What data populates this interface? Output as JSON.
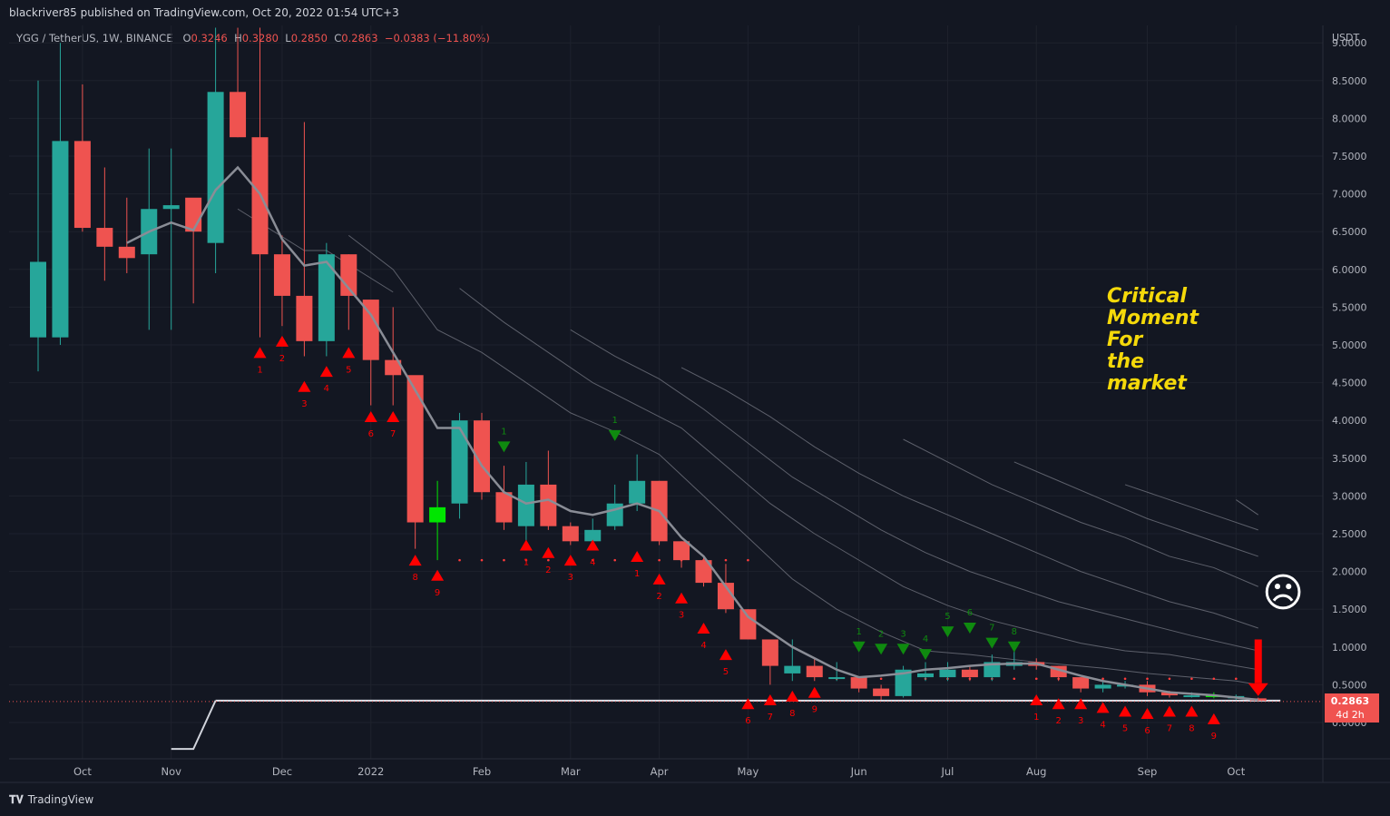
{
  "header": {
    "published_text": "blackriver85 published on TradingView.com, Oct 20, 2022 01:54 UTC+3"
  },
  "legend": {
    "symbol": "YGG / TetherUS, 1W, BINANCE",
    "o_label": "O",
    "o_value": "0.3246",
    "h_label": "H",
    "h_value": "0.3280",
    "l_label": "L",
    "l_value": "0.2850",
    "c_label": "C",
    "c_value": "0.2863",
    "change": "−0.0383 (−11.80%)"
  },
  "price_tag": {
    "price": "0.2863",
    "time_left": "4d 2h"
  },
  "annotation": {
    "lines": [
      "Critical",
      "Moment",
      "For",
      "the",
      "market"
    ]
  },
  "sad_face": "☹",
  "footer": {
    "brand": "TradingView"
  },
  "colors": {
    "up": "#26a69a",
    "down": "#ef5350",
    "bg": "#131722",
    "bright_green": "#00e600",
    "signal_red": "#ff0000",
    "signal_green": "#0f8a0f",
    "annotation": "#f5d90a"
  },
  "chart_data": {
    "type": "candlestick",
    "title": "YGG / TetherUS, 1W, BINANCE",
    "y_axis_title": "USDT",
    "y_ticks": [
      "0.0000",
      "0.5000",
      "1.0000",
      "1.5000",
      "2.0000",
      "2.5000",
      "3.0000",
      "3.5000",
      "4.0000",
      "4.5000",
      "5.0000",
      "5.5000",
      "6.0000",
      "6.5000",
      "7.0000",
      "7.5000",
      "8.0000",
      "8.5000",
      "9.0000"
    ],
    "ylim": [
      -0.45,
      9.2
    ],
    "x_ticks": [
      {
        "label": "Oct",
        "week": 2
      },
      {
        "label": "Nov",
        "week": 6
      },
      {
        "label": "Dec",
        "week": 11
      },
      {
        "label": "2022",
        "week": 15
      },
      {
        "label": "Feb",
        "week": 20
      },
      {
        "label": "Mar",
        "week": 24
      },
      {
        "label": "Apr",
        "week": 28
      },
      {
        "label": "May",
        "week": 32
      },
      {
        "label": "Jun",
        "week": 37
      },
      {
        "label": "Jul",
        "week": 41
      },
      {
        "label": "Aug",
        "week": 45
      },
      {
        "label": "Sep",
        "week": 50
      },
      {
        "label": "Oct",
        "week": 54
      }
    ],
    "candles": [
      [
        5.1,
        6.1,
        8.5,
        4.65
      ],
      [
        5.1,
        7.7,
        9.0,
        5.0
      ],
      [
        7.7,
        6.55,
        8.45,
        6.5
      ],
      [
        6.55,
        6.3,
        7.35,
        5.85
      ],
      [
        6.3,
        6.15,
        6.95,
        5.95
      ],
      [
        6.2,
        6.8,
        7.6,
        5.2
      ],
      [
        6.8,
        6.85,
        7.6,
        5.2
      ],
      [
        6.95,
        6.5,
        6.9,
        5.55
      ],
      [
        6.35,
        8.35,
        9.2,
        5.95
      ],
      [
        8.35,
        7.75,
        9.2,
        7.75
      ],
      [
        7.75,
        6.2,
        9.2,
        5.1
      ],
      [
        6.2,
        5.65,
        6.45,
        5.25
      ],
      [
        5.65,
        5.05,
        7.95,
        4.85
      ],
      [
        5.05,
        6.2,
        6.35,
        4.85
      ],
      [
        6.2,
        5.65,
        6.2,
        5.2
      ],
      [
        5.6,
        4.8,
        5.55,
        4.2
      ],
      [
        4.8,
        4.6,
        5.5,
        4.2
      ],
      [
        4.6,
        2.65,
        4.55,
        2.3
      ],
      [
        2.65,
        2.85,
        3.2,
        2.15
      ],
      [
        2.9,
        4.0,
        4.1,
        2.7
      ],
      [
        4.0,
        3.05,
        4.1,
        2.95
      ],
      [
        3.05,
        2.65,
        3.4,
        2.55
      ],
      [
        2.6,
        3.15,
        3.45,
        2.3
      ],
      [
        3.15,
        2.6,
        3.6,
        2.55
      ],
      [
        2.6,
        2.4,
        2.65,
        2.35
      ],
      [
        2.4,
        2.55,
        2.7,
        2.3
      ],
      [
        2.6,
        2.9,
        3.15,
        2.55
      ],
      [
        2.9,
        3.2,
        3.55,
        2.8
      ],
      [
        3.2,
        2.4,
        3.2,
        2.35
      ],
      [
        2.4,
        2.15,
        2.4,
        2.05
      ],
      [
        2.15,
        1.85,
        2.2,
        1.8
      ],
      [
        1.85,
        1.5,
        2.1,
        1.45
      ],
      [
        1.5,
        1.1,
        1.5,
        1.1
      ],
      [
        1.1,
        0.75,
        1.1,
        0.5
      ],
      [
        0.65,
        0.75,
        1.1,
        0.55
      ],
      [
        0.75,
        0.6,
        0.85,
        0.55
      ],
      [
        0.6,
        0.6,
        0.8,
        0.55
      ],
      [
        0.6,
        0.45,
        0.6,
        0.4
      ],
      [
        0.45,
        0.35,
        0.5,
        0.3
      ],
      [
        0.35,
        0.7,
        0.75,
        0.33
      ],
      [
        0.6,
        0.65,
        0.8,
        0.55
      ],
      [
        0.6,
        0.7,
        0.8,
        0.55
      ],
      [
        0.7,
        0.6,
        0.75,
        0.55
      ],
      [
        0.6,
        0.8,
        0.9,
        0.55
      ],
      [
        0.75,
        0.8,
        0.95,
        0.7
      ],
      [
        0.8,
        0.75,
        0.85,
        0.7
      ],
      [
        0.75,
        0.6,
        0.75,
        0.55
      ],
      [
        0.6,
        0.45,
        0.6,
        0.4
      ],
      [
        0.45,
        0.5,
        0.55,
        0.4
      ],
      [
        0.5,
        0.5,
        0.55,
        0.45
      ],
      [
        0.5,
        0.4,
        0.55,
        0.35
      ],
      [
        0.4,
        0.36,
        0.42,
        0.33
      ],
      [
        0.36,
        0.36,
        0.4,
        0.33
      ],
      [
        0.36,
        0.35,
        0.4,
        0.32
      ],
      [
        0.32,
        0.35,
        0.37,
        0.3
      ],
      [
        0.32,
        0.29,
        0.33,
        0.285
      ]
    ],
    "bright_green_weeks": [
      18,
      53
    ],
    "moving_average": [
      [
        4,
        6.35
      ],
      [
        5,
        6.5
      ],
      [
        6,
        6.62
      ],
      [
        7,
        6.52
      ],
      [
        8,
        7.05
      ],
      [
        9,
        7.35
      ],
      [
        10,
        7.0
      ],
      [
        11,
        6.4
      ],
      [
        12,
        6.05
      ],
      [
        13,
        6.1
      ],
      [
        14,
        5.75
      ],
      [
        15,
        5.4
      ],
      [
        16,
        4.9
      ],
      [
        17,
        4.4
      ],
      [
        18,
        3.9
      ],
      [
        19,
        3.9
      ],
      [
        20,
        3.4
      ],
      [
        21,
        3.05
      ],
      [
        22,
        2.9
      ],
      [
        23,
        2.95
      ],
      [
        24,
        2.8
      ],
      [
        25,
        2.75
      ],
      [
        26,
        2.82
      ],
      [
        27,
        2.9
      ],
      [
        28,
        2.8
      ],
      [
        29,
        2.45
      ],
      [
        30,
        2.2
      ],
      [
        31,
        1.8
      ],
      [
        32,
        1.4
      ],
      [
        33,
        1.2
      ],
      [
        34,
        1.0
      ],
      [
        35,
        0.85
      ],
      [
        36,
        0.7
      ],
      [
        37,
        0.6
      ],
      [
        38,
        0.62
      ],
      [
        39,
        0.65
      ],
      [
        40,
        0.7
      ],
      [
        41,
        0.72
      ],
      [
        42,
        0.75
      ],
      [
        43,
        0.77
      ],
      [
        44,
        0.78
      ],
      [
        45,
        0.78
      ],
      [
        46,
        0.7
      ],
      [
        47,
        0.62
      ],
      [
        48,
        0.55
      ],
      [
        49,
        0.5
      ],
      [
        50,
        0.45
      ],
      [
        51,
        0.4
      ],
      [
        52,
        0.38
      ],
      [
        53,
        0.36
      ],
      [
        54,
        0.33
      ],
      [
        55,
        0.3
      ]
    ],
    "support_line": {
      "value": 0.29,
      "from_week": 8,
      "to_week": 56,
      "rise_from": [
        [
          6,
          -0.35
        ],
        [
          7,
          -0.35
        ],
        [
          8,
          0.29
        ]
      ]
    },
    "envelope_lines": [
      [
        [
          9,
          6.8
        ],
        [
          12,
          6.25
        ],
        [
          13,
          6.25
        ],
        [
          16,
          5.7
        ]
      ],
      [
        [
          14,
          6.45
        ],
        [
          16,
          6.0
        ],
        [
          18,
          5.2
        ],
        [
          20,
          4.9
        ],
        [
          22,
          4.5
        ],
        [
          24,
          4.1
        ],
        [
          26,
          3.85
        ],
        [
          28,
          3.55
        ],
        [
          30,
          3.0
        ],
        [
          32,
          2.45
        ],
        [
          34,
          1.9
        ],
        [
          36,
          1.5
        ],
        [
          38,
          1.2
        ],
        [
          40,
          0.95
        ],
        [
          42,
          0.9
        ],
        [
          45,
          0.8
        ],
        [
          48,
          0.72
        ],
        [
          50,
          0.65
        ],
        [
          52,
          0.6
        ],
        [
          54,
          0.55
        ],
        [
          55,
          0.5
        ]
      ],
      [
        [
          19,
          5.75
        ],
        [
          21,
          5.3
        ],
        [
          23,
          4.9
        ],
        [
          25,
          4.5
        ],
        [
          27,
          4.2
        ],
        [
          29,
          3.9
        ],
        [
          31,
          3.4
        ],
        [
          33,
          2.9
        ],
        [
          35,
          2.5
        ],
        [
          37,
          2.15
        ],
        [
          39,
          1.8
        ],
        [
          41,
          1.55
        ],
        [
          43,
          1.35
        ],
        [
          45,
          1.2
        ],
        [
          47,
          1.05
        ],
        [
          49,
          0.95
        ],
        [
          51,
          0.9
        ],
        [
          53,
          0.8
        ],
        [
          55,
          0.7
        ]
      ],
      [
        [
          24,
          5.2
        ],
        [
          26,
          4.85
        ],
        [
          28,
          4.55
        ],
        [
          30,
          4.15
        ],
        [
          32,
          3.7
        ],
        [
          34,
          3.25
        ],
        [
          36,
          2.9
        ],
        [
          38,
          2.55
        ],
        [
          40,
          2.25
        ],
        [
          42,
          2.0
        ],
        [
          44,
          1.8
        ],
        [
          46,
          1.6
        ],
        [
          48,
          1.45
        ],
        [
          50,
          1.3
        ],
        [
          52,
          1.15
        ],
        [
          55,
          0.95
        ]
      ],
      [
        [
          29,
          4.7
        ],
        [
          31,
          4.4
        ],
        [
          33,
          4.05
        ],
        [
          35,
          3.65
        ],
        [
          37,
          3.3
        ],
        [
          39,
          3.0
        ],
        [
          41,
          2.75
        ],
        [
          43,
          2.5
        ],
        [
          45,
          2.25
        ],
        [
          47,
          2.0
        ],
        [
          49,
          1.8
        ],
        [
          51,
          1.6
        ],
        [
          53,
          1.45
        ],
        [
          55,
          1.25
        ]
      ],
      [
        [
          39,
          3.75
        ],
        [
          41,
          3.45
        ],
        [
          43,
          3.15
        ],
        [
          45,
          2.9
        ],
        [
          47,
          2.65
        ],
        [
          49,
          2.45
        ],
        [
          51,
          2.2
        ],
        [
          53,
          2.05
        ],
        [
          55,
          1.8
        ]
      ],
      [
        [
          44,
          3.45
        ],
        [
          46,
          3.2
        ],
        [
          48,
          2.95
        ],
        [
          50,
          2.7
        ],
        [
          52,
          2.5
        ],
        [
          54,
          2.3
        ],
        [
          55,
          2.2
        ]
      ],
      [
        [
          49,
          3.15
        ],
        [
          51,
          2.95
        ],
        [
          53,
          2.75
        ],
        [
          55,
          2.55
        ]
      ],
      [
        [
          54,
          2.95
        ],
        [
          55,
          2.75
        ]
      ]
    ],
    "red_signals": [
      {
        "week": 10,
        "value": 4.9,
        "label": "1"
      },
      {
        "week": 11,
        "value": 5.05,
        "label": "2"
      },
      {
        "week": 12,
        "value": 4.45,
        "label": "3"
      },
      {
        "week": 13,
        "value": 4.65,
        "label": "4"
      },
      {
        "week": 14,
        "value": 4.9,
        "label": "5"
      },
      {
        "week": 15,
        "value": 4.05,
        "label": "6"
      },
      {
        "week": 16,
        "value": 4.05,
        "label": "7"
      },
      {
        "week": 17,
        "value": 2.15,
        "label": "8"
      },
      {
        "week": 18,
        "value": 1.95,
        "label": "9"
      },
      {
        "week": 22,
        "value": 2.35,
        "label": "1"
      },
      {
        "week": 23,
        "value": 2.25,
        "label": "2"
      },
      {
        "week": 24,
        "value": 2.15,
        "label": "3"
      },
      {
        "week": 25,
        "value": 2.35,
        "label": "4"
      },
      {
        "week": 27,
        "value": 2.2,
        "label": "1"
      },
      {
        "week": 28,
        "value": 1.9,
        "label": "2"
      },
      {
        "week": 29,
        "value": 1.65,
        "label": "3"
      },
      {
        "week": 30,
        "value": 1.25,
        "label": "4"
      },
      {
        "week": 31,
        "value": 0.9,
        "label": "5"
      },
      {
        "week": 32,
        "value": 0.25,
        "label": "6"
      },
      {
        "week": 33,
        "value": 0.3,
        "label": "7"
      },
      {
        "week": 34,
        "value": 0.35,
        "label": "8"
      },
      {
        "week": 35,
        "value": 0.4,
        "label": "9"
      },
      {
        "week": 45,
        "value": 0.3,
        "label": "1"
      },
      {
        "week": 46,
        "value": 0.25,
        "label": "2"
      },
      {
        "week": 47,
        "value": 0.25,
        "label": "3"
      },
      {
        "week": 48,
        "value": 0.2,
        "label": "4"
      },
      {
        "week": 49,
        "value": 0.15,
        "label": "5"
      },
      {
        "week": 50,
        "value": 0.12,
        "label": "6"
      },
      {
        "week": 51,
        "value": 0.15,
        "label": "7"
      },
      {
        "week": 52,
        "value": 0.15,
        "label": "8"
      },
      {
        "week": 53,
        "value": 0.05,
        "label": "9"
      }
    ],
    "green_signals": [
      {
        "week": 21,
        "value": 3.65,
        "label": "1"
      },
      {
        "week": 26,
        "value": 3.8,
        "label": "1"
      },
      {
        "week": 37,
        "value": 1.0,
        "label": "1"
      },
      {
        "week": 38,
        "value": 0.97,
        "label": "2"
      },
      {
        "week": 39,
        "value": 0.97,
        "label": "3"
      },
      {
        "week": 40,
        "value": 0.9,
        "label": "4"
      },
      {
        "week": 41,
        "value": 1.2,
        "label": "5"
      },
      {
        "week": 42,
        "value": 1.25,
        "label": "6"
      },
      {
        "week": 43,
        "value": 1.05,
        "label": "7"
      },
      {
        "week": 44,
        "value": 1.0,
        "label": "8"
      }
    ],
    "dot_rows": [
      {
        "value": 2.15,
        "from_week": 19,
        "to_week": 32
      },
      {
        "value": 0.58,
        "from_week": 36,
        "to_week": 54
      }
    ],
    "down_arrow": {
      "week": 55,
      "from": 1.1,
      "to": 0.4
    }
  }
}
